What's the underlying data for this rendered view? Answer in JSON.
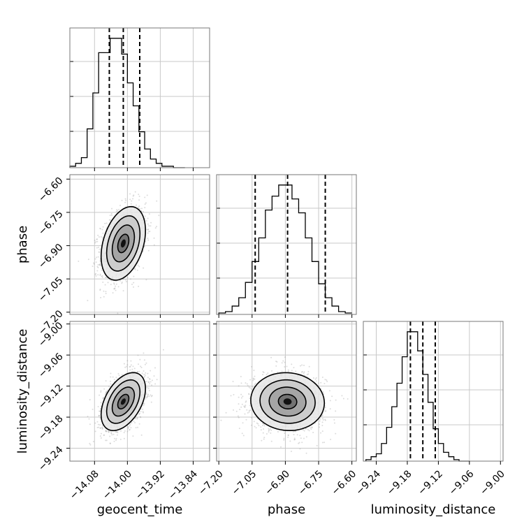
{
  "chart_data": {
    "type": "corner",
    "parameters": [
      "geocent_time",
      "phase",
      "luminosity_distance"
    ],
    "axes": {
      "geocent_time": {
        "label": "geocent_time",
        "range": [
          -14.14,
          -13.8
        ],
        "ticks": [
          -14.08,
          -14.0,
          -13.92,
          -13.84
        ],
        "tick_labels": [
          "−14.08",
          "−14.00",
          "−13.92",
          "−13.84"
        ]
      },
      "phase": {
        "label": "phase",
        "range": [
          -7.21,
          -6.58
        ],
        "ticks": [
          -7.2,
          -7.05,
          -6.9,
          -6.75,
          -6.6
        ],
        "tick_labels": [
          "−7.20",
          "−7.05",
          "−6.90",
          "−6.75",
          "−6.60"
        ]
      },
      "luminosity_distance": {
        "label": "luminosity_distance",
        "range": [
          -9.265,
          -8.995
        ],
        "ticks": [
          -9.24,
          -9.18,
          -9.12,
          -9.06,
          -9.0
        ],
        "tick_labels": [
          "−9.24",
          "−9.18",
          "−9.12",
          "−9.06",
          "−9.00"
        ]
      }
    },
    "histograms": {
      "geocent_time": {
        "bin_edges": [
          -14.14,
          -14.126,
          -14.112,
          -14.098,
          -14.084,
          -14.07,
          -14.056,
          -14.042,
          -14.028,
          -14.014,
          -14.0,
          -13.986,
          -13.972,
          -13.958,
          -13.944,
          -13.93,
          -13.916,
          -13.902,
          -13.888,
          -13.874,
          -13.86
        ],
        "counts": [
          0.01,
          0.03,
          0.07,
          0.27,
          0.52,
          0.8,
          0.8,
          0.9,
          0.9,
          0.79,
          0.59,
          0.43,
          0.25,
          0.13,
          0.06,
          0.03,
          0.01,
          0.01,
          0.0,
          0.0
        ],
        "quantiles": [
          -14.044,
          -14.01,
          -13.97
        ]
      },
      "phase": {
        "bin_edges": [
          -7.2,
          -7.17,
          -7.14,
          -7.11,
          -7.08,
          -7.05,
          -7.02,
          -6.99,
          -6.96,
          -6.93,
          -6.9,
          -6.87,
          -6.84,
          -6.81,
          -6.78,
          -6.75,
          -6.72,
          -6.69,
          -6.66,
          -6.63,
          -6.6
        ],
        "counts": [
          0.01,
          0.02,
          0.06,
          0.12,
          0.23,
          0.38,
          0.55,
          0.75,
          0.85,
          0.93,
          0.93,
          0.83,
          0.73,
          0.55,
          0.38,
          0.22,
          0.12,
          0.06,
          0.02,
          0.01
        ],
        "quantiles": [
          -7.036,
          -6.89,
          -6.72
        ]
      },
      "luminosity_distance": {
        "bin_edges": [
          -9.26,
          -9.25,
          -9.24,
          -9.23,
          -9.22,
          -9.21,
          -9.2,
          -9.19,
          -9.18,
          -9.17,
          -9.16,
          -9.15,
          -9.14,
          -9.13,
          -9.12,
          -9.11,
          -9.1,
          -9.09,
          -9.08,
          -9.07,
          -9.06
        ],
        "counts": [
          0.01,
          0.03,
          0.05,
          0.12,
          0.23,
          0.37,
          0.53,
          0.71,
          0.88,
          0.88,
          0.75,
          0.59,
          0.4,
          0.22,
          0.12,
          0.06,
          0.03,
          0.01,
          0.0,
          0.0
        ],
        "quantiles": [
          -9.174,
          -9.15,
          -9.126
        ]
      }
    },
    "pairs": [
      {
        "x": "geocent_time",
        "y": "phase",
        "mean": [
          -14.01,
          -6.89
        ],
        "std": [
          0.027,
          0.083
        ],
        "corr": 0.35
      },
      {
        "x": "geocent_time",
        "y": "luminosity_distance",
        "mean": [
          -14.01,
          -9.15
        ],
        "std": [
          0.027,
          0.028
        ],
        "corr": 0.45
      },
      {
        "x": "phase",
        "y": "luminosity_distance",
        "mean": [
          -6.89,
          -9.15
        ],
        "std": [
          0.083,
          0.028
        ],
        "corr": -0.05
      }
    ],
    "contour_levels_sigma": [
      0.5,
      1.0,
      1.5,
      2.0
    ]
  }
}
